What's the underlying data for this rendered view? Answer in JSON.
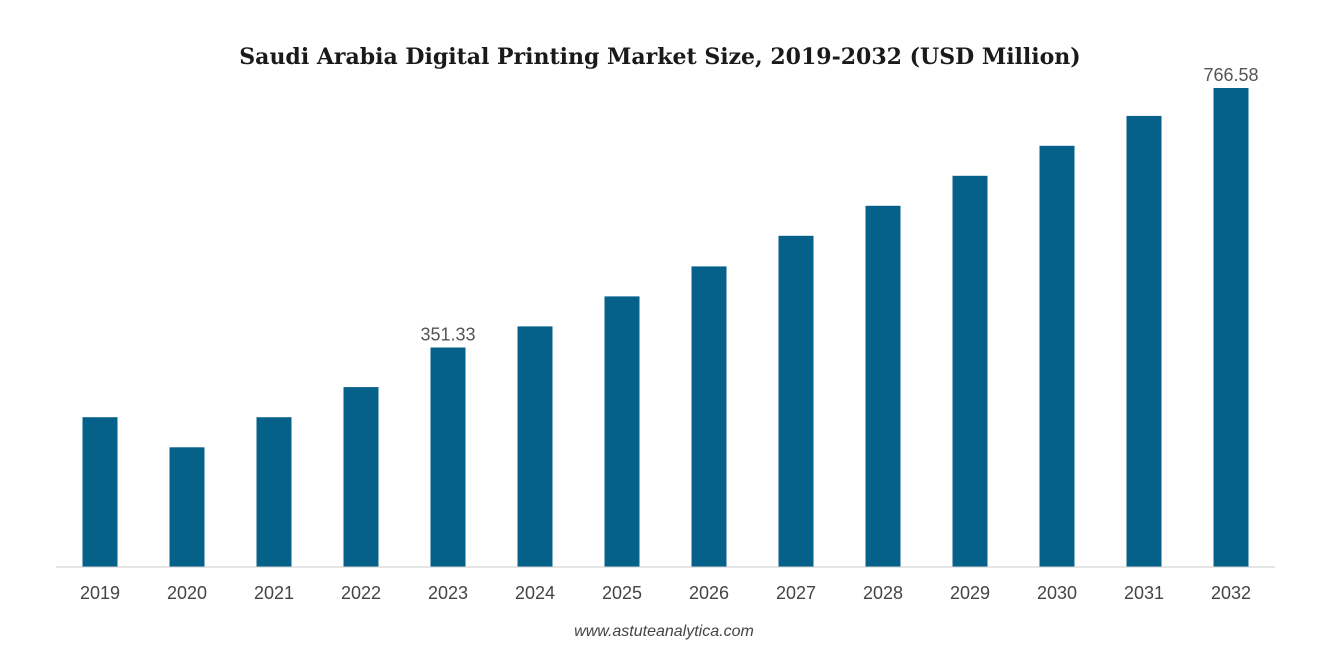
{
  "chart_data": {
    "type": "bar",
    "title": "Saudi Arabia Digital Printing Market Size, 2019-2032 (USD Million)",
    "xlabel": "",
    "ylabel": "",
    "categories": [
      "2019",
      "2020",
      "2021",
      "2022",
      "2023",
      "2024",
      "2025",
      "2026",
      "2027",
      "2028",
      "2029",
      "2030",
      "2031",
      "2032"
    ],
    "values": [
      239.7,
      191.5,
      239.7,
      287.9,
      351.33,
      385.0,
      433.0,
      481.0,
      530.0,
      578.0,
      626.0,
      674.0,
      722.0,
      766.58
    ],
    "data_labels": [
      {
        "category": "2023",
        "text": "351.33"
      },
      {
        "category": "2032",
        "text": "766.58"
      }
    ],
    "ylim": [
      0,
      766.58
    ],
    "grid": false,
    "legend": "none",
    "bar_color": "#05618A",
    "baseline_color": "#cccccc"
  },
  "source": "www.astuteanalytica.com"
}
